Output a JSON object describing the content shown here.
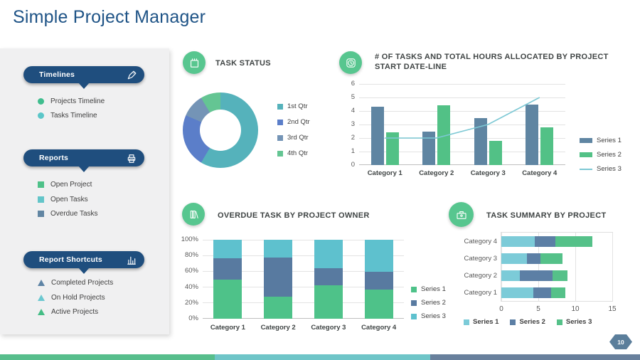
{
  "slide": {
    "title": "Simple Project Manager",
    "title_color": "#1E5386"
  },
  "palette": {
    "pill_blue": "#1F4E7E",
    "icon_circle_green": "#57C68F",
    "heading_gray": "#3F4444",
    "tick_gray": "#595959"
  },
  "sidebar": {
    "sections": [
      {
        "label": "Timelines",
        "icon": "pen-icon",
        "items": [
          {
            "label": "Projects Timeline",
            "bullet": "circle",
            "color": "#3FBD8E"
          },
          {
            "label": "Tasks Timeline",
            "bullet": "circle",
            "color": "#5BC6C8"
          }
        ]
      },
      {
        "label": "Reports",
        "icon": "printer-icon",
        "items": [
          {
            "label": "Open Project",
            "bullet": "square",
            "color": "#4EC189"
          },
          {
            "label": "Open Tasks",
            "bullet": "square",
            "color": "#63C5C9"
          },
          {
            "label": "Overdue Tasks",
            "bullet": "square",
            "color": "#6286A3"
          }
        ]
      },
      {
        "label": "Report Shortcuts",
        "icon": "bar-chart-icon",
        "items": [
          {
            "label": "Completed Projects",
            "bullet": "triangle",
            "color": "#5E84A5"
          },
          {
            "label": "On Hold Projects",
            "bullet": "triangle",
            "color": "#6BC8D0"
          },
          {
            "label": "Active Projects",
            "bullet": "triangle",
            "color": "#44BD85"
          }
        ]
      }
    ]
  },
  "chart_data": [
    {
      "id": "task_status",
      "type": "pie",
      "donut": true,
      "title": "TASK STATUS",
      "icon": "tasks-icon",
      "labels": [
        "1st Qtr",
        "2nd Qtr",
        "3rd Qtr",
        "4th Qtr"
      ],
      "values": [
        8.2,
        3.2,
        1.4,
        1.2
      ],
      "colors": [
        "#55B2BB",
        "#5B7EC9",
        "#7494B6",
        "#64C593"
      ],
      "legend_position": "right"
    },
    {
      "id": "tasks_hours",
      "type": "bar",
      "combo": true,
      "title": "# OF TASKS AND TOTAL HOURS ALLOCATED BY PROJECT START DATE-LINE",
      "icon": "clock-icon",
      "categories": [
        "Category 1",
        "Category 2",
        "Category 3",
        "Category 4"
      ],
      "series": [
        {
          "name": "Series 1",
          "type": "bar",
          "color": "#5F85A2",
          "values": [
            4.3,
            2.5,
            3.5,
            4.5
          ]
        },
        {
          "name": "Series 2",
          "type": "bar",
          "color": "#52C186",
          "values": [
            2.4,
            4.4,
            1.8,
            2.8
          ]
        },
        {
          "name": "Series 3",
          "type": "line",
          "color": "#7CC8D4",
          "values": [
            2,
            2,
            3,
            5
          ]
        }
      ],
      "ylim": [
        0,
        6
      ],
      "yticks": [
        0,
        1,
        2,
        3,
        4,
        5,
        6
      ],
      "grid": true,
      "legend_position": "right"
    },
    {
      "id": "overdue",
      "type": "bar",
      "stacked_percent": true,
      "title": "OVERDUE TASK BY PROJECT OWNER",
      "icon": "books-icon",
      "categories": [
        "Category 1",
        "Category 2",
        "Category 3",
        "Category 4"
      ],
      "series": [
        {
          "name": "Series 1",
          "color": "#4EC289",
          "values": [
            4.3,
            2.5,
            3.5,
            4.5
          ]
        },
        {
          "name": "Series 2",
          "color": "#587AA0",
          "values": [
            2.4,
            4.4,
            1.8,
            2.8
          ]
        },
        {
          "name": "Series 3",
          "color": "#5EC1CE",
          "values": [
            2,
            2,
            3,
            5
          ]
        }
      ],
      "yticks": [
        "0%",
        "20%",
        "40%",
        "60%",
        "80%",
        "100%"
      ],
      "grid": true,
      "legend_position": "right"
    },
    {
      "id": "task_summary",
      "type": "bar",
      "horizontal": true,
      "stacked": true,
      "title": "TASK SUMMARY BY PROJECT",
      "icon": "toolbox-icon",
      "categories": [
        "Category 4",
        "Category 3",
        "Category 2",
        "Category 1"
      ],
      "series": [
        {
          "name": "Series 1",
          "color": "#7CCBD8",
          "values": [
            4.5,
            3.5,
            2.5,
            4.3
          ]
        },
        {
          "name": "Series 2",
          "color": "#5C7FA5",
          "values": [
            2.8,
            1.8,
            4.4,
            2.4
          ]
        },
        {
          "name": "Series 3",
          "color": "#55C189",
          "values": [
            5,
            3,
            2,
            2
          ]
        }
      ],
      "xlim": [
        0,
        15
      ],
      "xticks": [
        0,
        5,
        10,
        15
      ],
      "grid": true,
      "legend_position": "bottom"
    }
  ],
  "footer": {
    "page_number": "10",
    "page_badge_color": "#5B7E9B",
    "stripe_colors": [
      "#57BE8C",
      "#6FC5C8",
      "#68809C"
    ]
  }
}
